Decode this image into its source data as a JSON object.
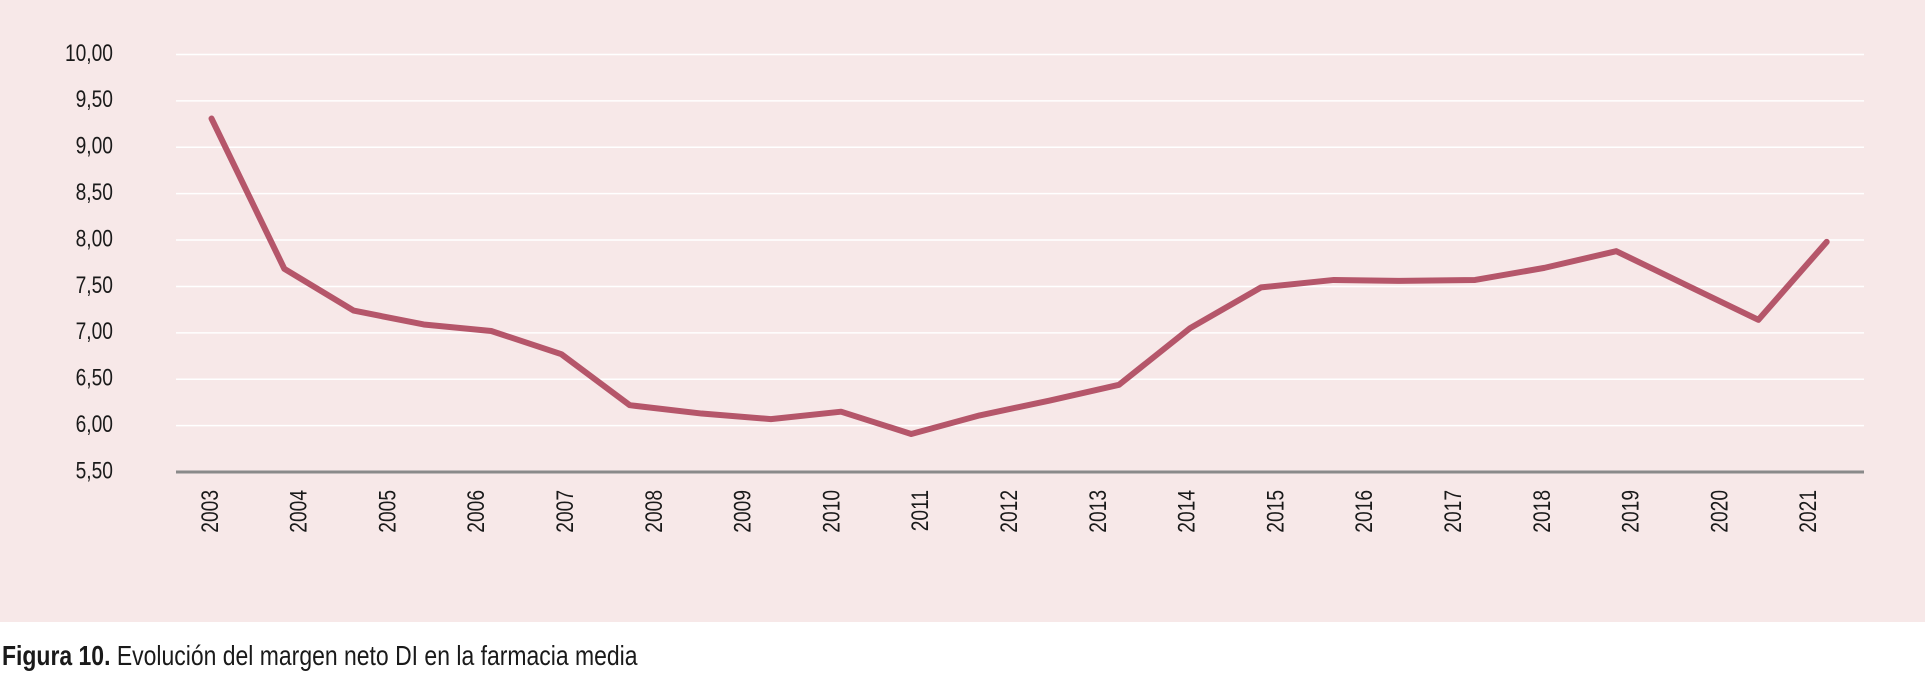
{
  "chart_data": {
    "type": "line",
    "x": [
      2003.0,
      2003.82,
      2004.6,
      2005.39,
      2006.15,
      2006.94,
      2007.71,
      2008.52,
      2009.3,
      2010.09,
      2010.88,
      2011.65,
      2012.44,
      2013.22,
      2014.02,
      2014.82,
      2015.64,
      2016.38,
      2017.23,
      2018.01,
      2018.82,
      2019.62,
      2020.42,
      2021.19
    ],
    "series": [
      {
        "color": "#b5566a",
        "values": [
          9.31,
          7.69,
          7.24,
          7.09,
          7.02,
          6.77,
          6.22,
          6.13,
          6.07,
          6.15,
          5.91,
          6.11,
          6.27,
          6.44,
          7.05,
          7.49,
          7.57,
          7.56,
          7.57,
          7.7,
          7.88,
          7.51,
          7.14,
          7.98
        ]
      }
    ],
    "xlim": [
      2002.6,
      2021.61
    ],
    "xticks": [
      2003,
      2004,
      2005,
      2006,
      2007,
      2008,
      2009,
      2010,
      2011,
      2012,
      2013,
      2014,
      2015,
      2016,
      2017,
      2018,
      2019,
      2020,
      2021
    ],
    "ylim": [
      5.5,
      10
    ],
    "yticks": [
      {
        "value": 5.5,
        "label": "5,50"
      },
      {
        "value": 6,
        "label": "6,00"
      },
      {
        "value": 6.5,
        "label": "6,50"
      },
      {
        "value": 7,
        "label": "7,00"
      },
      {
        "value": 7.5,
        "label": "7,50"
      },
      {
        "value": 8,
        "label": "8,00"
      },
      {
        "value": 8.5,
        "label": "8,50"
      },
      {
        "value": 9,
        "label": "9,00"
      },
      {
        "value": 9.5,
        "label": "9,50"
      },
      {
        "value": 10,
        "label": "10,00"
      }
    ],
    "grid": true,
    "caption_label": "Figura 10.",
    "caption": "Evolución del margen neto DI en la farmacia media"
  }
}
